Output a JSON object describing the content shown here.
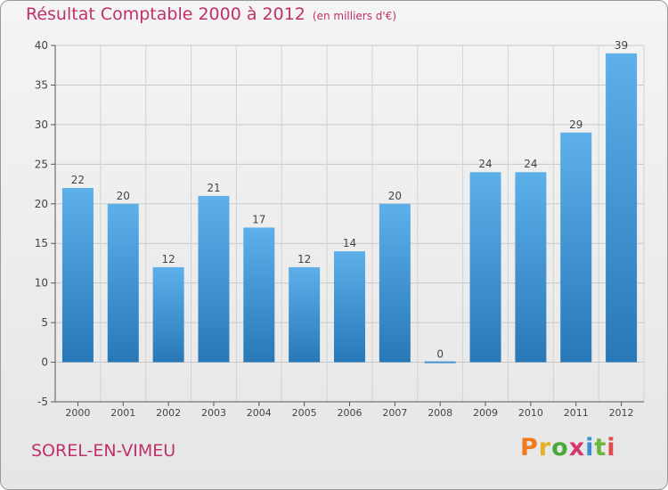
{
  "title": "Résultat Comptable 2000 à 2012",
  "subtitle": "(en milliers d'€)",
  "commune": "SOREL-EN-VIMEU",
  "brand": {
    "letters": [
      "P",
      "r",
      "o",
      "x",
      "i",
      "t",
      "i"
    ],
    "colors": [
      "#f07a1c",
      "#e8b020",
      "#4aa83c",
      "#d33a6c",
      "#3a8ed0",
      "#6ab83a",
      "#e04a4a"
    ]
  },
  "colors": {
    "bar_top": "#5db0ea",
    "bar_bottom": "#2878b8",
    "title": "#c0306a"
  },
  "chart_data": {
    "type": "bar",
    "title": "Résultat Comptable 2000 à 2012",
    "subtitle": "(en milliers d'€)",
    "categories": [
      "2000",
      "2001",
      "2002",
      "2003",
      "2004",
      "2005",
      "2006",
      "2007",
      "2008",
      "2009",
      "2010",
      "2011",
      "2012"
    ],
    "values": [
      22,
      20,
      12,
      21,
      17,
      12,
      14,
      20,
      0,
      24,
      24,
      29,
      39
    ],
    "ylim": [
      -5,
      40
    ],
    "yticks": [
      -5,
      0,
      5,
      10,
      15,
      20,
      25,
      30,
      35,
      40
    ],
    "xlabel": "",
    "ylabel": "",
    "grid": true
  }
}
